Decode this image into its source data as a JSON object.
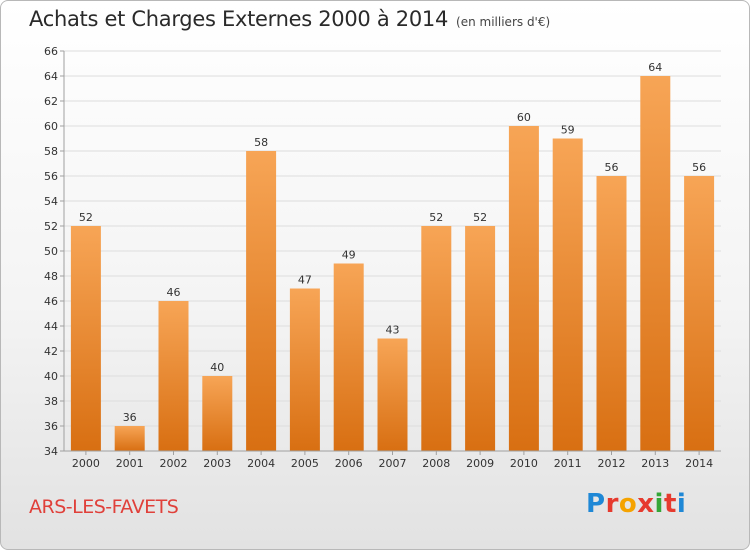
{
  "header": {
    "title": "Achats et Charges Externes 2000 à 2014",
    "subtitle": "(en milliers d'€)"
  },
  "footer": {
    "town": "ARS-LES-FAVETS",
    "logo_letters": [
      "P",
      "r",
      "o",
      "x",
      "i",
      "t",
      "i"
    ]
  },
  "chart_data": {
    "type": "bar",
    "title": "Achats et Charges Externes 2000 à 2014",
    "subtitle": "(en milliers d'€)",
    "categories": [
      "2000",
      "2001",
      "2002",
      "2003",
      "2004",
      "2005",
      "2006",
      "2007",
      "2008",
      "2009",
      "2010",
      "2011",
      "2012",
      "2013",
      "2014"
    ],
    "values": [
      52,
      36,
      46,
      40,
      58,
      47,
      49,
      43,
      52,
      52,
      60,
      59,
      56,
      64,
      56
    ],
    "ylim": [
      34,
      66
    ],
    "yticks": [
      34,
      36,
      38,
      40,
      42,
      44,
      46,
      48,
      50,
      52,
      54,
      56,
      58,
      60,
      62,
      64,
      66
    ],
    "grid": "horizontal",
    "bar_color_top": "#f7a556",
    "bar_color_bottom": "#d86f12",
    "axis_color": "#a0a0a0",
    "grid_color": "#dddddd"
  }
}
